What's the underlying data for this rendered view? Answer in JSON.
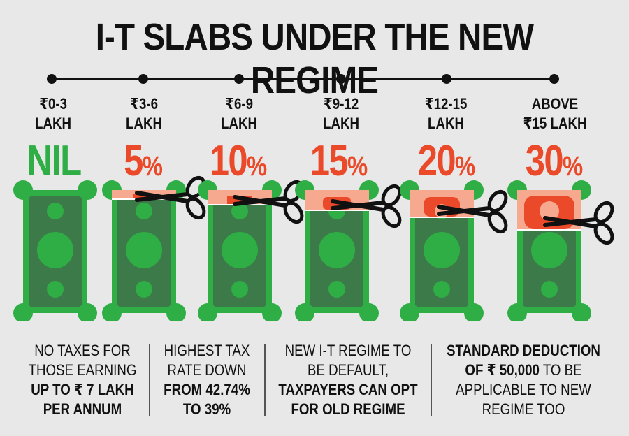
{
  "title": "I-T SLABS UNDER THE NEW REGIME",
  "slabs": [
    {
      "line1": "₹0-3",
      "line2": "LAKH",
      "rate": "NIL",
      "pct": "",
      "cut_fraction": 0
    },
    {
      "line1": "₹3-6",
      "line2": "LAKH",
      "rate": "5",
      "pct": "%",
      "cut_fraction": 0.05
    },
    {
      "line1": "₹6-9",
      "line2": "LAKH",
      "rate": "10",
      "pct": "%",
      "cut_fraction": 0.1
    },
    {
      "line1": "₹9-12",
      "line2": "LAKH",
      "rate": "15",
      "pct": "%",
      "cut_fraction": 0.15
    },
    {
      "line1": "₹12-15",
      "line2": "LAKH",
      "rate": "20",
      "pct": "%",
      "cut_fraction": 0.2
    },
    {
      "line1": "ABOVE",
      "line2": "₹15 LAKH",
      "rate": "30",
      "pct": "%",
      "cut_fraction": 0.3
    }
  ],
  "notes": [
    {
      "l1": "NO TAXES FOR",
      "l2": "THOSE EARNING",
      "l3": "UP TO ₹ 7 LAKH",
      "l4": "PER ANNUM"
    },
    {
      "l1": "HIGHEST TAX",
      "l2": "RATE DOWN",
      "l3": "FROM 42.74%",
      "l4": "TO 39%"
    },
    {
      "l1": "NEW I-T REGIME TO",
      "l2": "BE DEFAULT,",
      "l3": "TAXPAYERS CAN OPT",
      "l4": "FOR OLD REGIME"
    },
    {
      "l1a": "STANDARD DEDUCTION",
      "l2a": "OF ₹ 50,000",
      "l2b": " TO BE",
      "l3": "APPLICABLE TO NEW",
      "l4": "REGIME TOO"
    }
  ],
  "colors": {
    "green": "#2fae45",
    "dark_green": "#3c7a4a",
    "red": "#eb4a2a",
    "pink": "#f6a98e",
    "ink": "#111111"
  }
}
